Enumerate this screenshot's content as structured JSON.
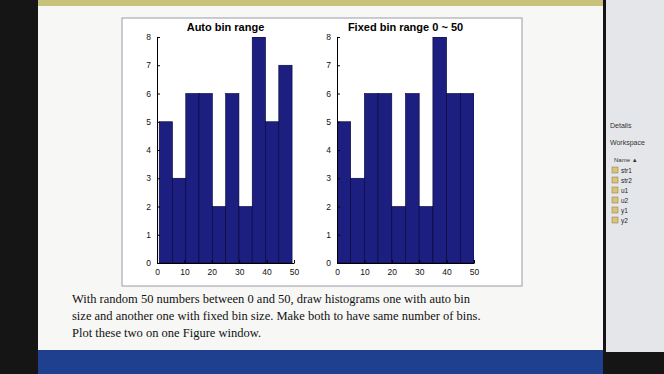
{
  "chart_data": [
    {
      "type": "histogram",
      "title": "Auto bin range",
      "bins": [
        0.8,
        5.65,
        10.5,
        15.35,
        20.2,
        25.05,
        29.9,
        34.75,
        39.6,
        44.45,
        49.3
      ],
      "values": [
        5,
        3,
        6,
        6,
        2,
        6,
        2,
        8,
        5,
        7
      ],
      "color": "#1c1f80",
      "xlim": [
        0,
        50
      ],
      "xticks": [
        0,
        10,
        20,
        30,
        40,
        50
      ],
      "ylim": [
        0,
        8
      ],
      "yticks": [
        0,
        1,
        2,
        3,
        4,
        5,
        6,
        7,
        8
      ],
      "grid": false
    },
    {
      "type": "histogram",
      "title": "Fixed bin range 0 ~ 50",
      "bins": [
        0,
        5,
        10,
        15,
        20,
        25,
        30,
        35,
        40,
        45,
        50
      ],
      "values": [
        5,
        3,
        6,
        6,
        2,
        6,
        2,
        8,
        6,
        6
      ],
      "color": "#1c1f80",
      "xlim": [
        0,
        50
      ],
      "xticks": [
        0,
        10,
        20,
        30,
        40,
        50
      ],
      "ylim": [
        0,
        8
      ],
      "yticks": [
        0,
        1,
        2,
        3,
        4,
        5,
        6,
        7,
        8
      ],
      "grid": false
    }
  ],
  "caption": [
    "With random 50 numbers between 0 and 50, draw histograms one with auto bin",
    "size and another one with fixed bin size. Make both to have same number of bins.",
    "Plot these two on one Figure window."
  ],
  "sidebar": {
    "sections": [
      "Details",
      "Workspace"
    ],
    "header": "Name ▲",
    "variables": [
      "str1",
      "str2",
      "u1",
      "u2",
      "y1",
      "y2"
    ]
  }
}
